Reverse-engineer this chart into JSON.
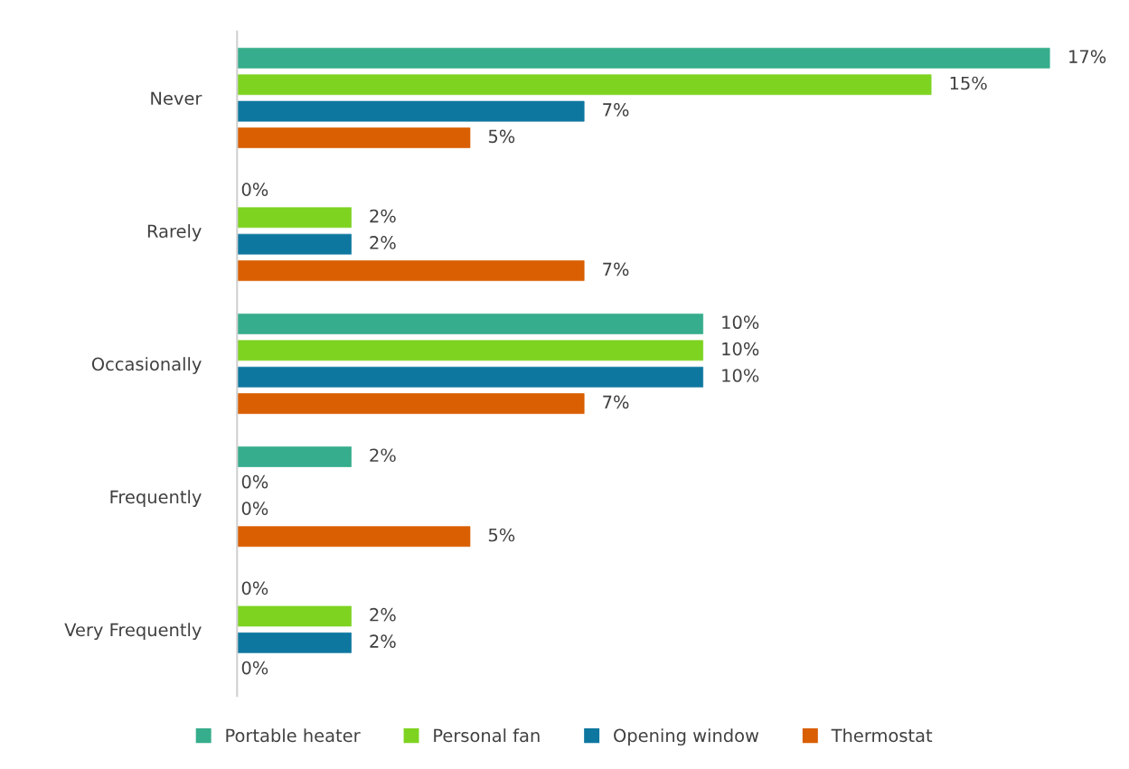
{
  "chart_data": {
    "type": "bar",
    "orientation": "horizontal",
    "categories": [
      "Never",
      "Rarely",
      "Occasionally",
      "Frequently",
      "Very Frequently"
    ],
    "series": [
      {
        "name": "Portable heater",
        "color": "#36ad8c",
        "values": [
          17.1,
          0,
          9.8,
          2.4,
          0
        ],
        "value_labels": [
          "17%",
          "0%",
          "10%",
          "2%",
          "0%"
        ]
      },
      {
        "name": "Personal fan",
        "color": "#7ed321",
        "values": [
          14.6,
          2.4,
          9.8,
          0,
          2.4
        ],
        "value_labels": [
          "15%",
          "2%",
          "10%",
          "0%",
          "2%"
        ]
      },
      {
        "name": "Opening window",
        "color": "#0e77a0",
        "values": [
          7.3,
          2.4,
          9.8,
          0,
          2.4
        ],
        "value_labels": [
          "7%",
          "2%",
          "10%",
          "0%",
          "2%"
        ]
      },
      {
        "name": "Thermostat",
        "color": "#d95f02",
        "values": [
          4.9,
          7.3,
          7.3,
          4.9,
          0
        ],
        "value_labels": [
          "5%",
          "7%",
          "7%",
          "5%",
          "0%"
        ]
      }
    ],
    "tick_labels": "y",
    "grid": false,
    "legend": "bottom"
  }
}
